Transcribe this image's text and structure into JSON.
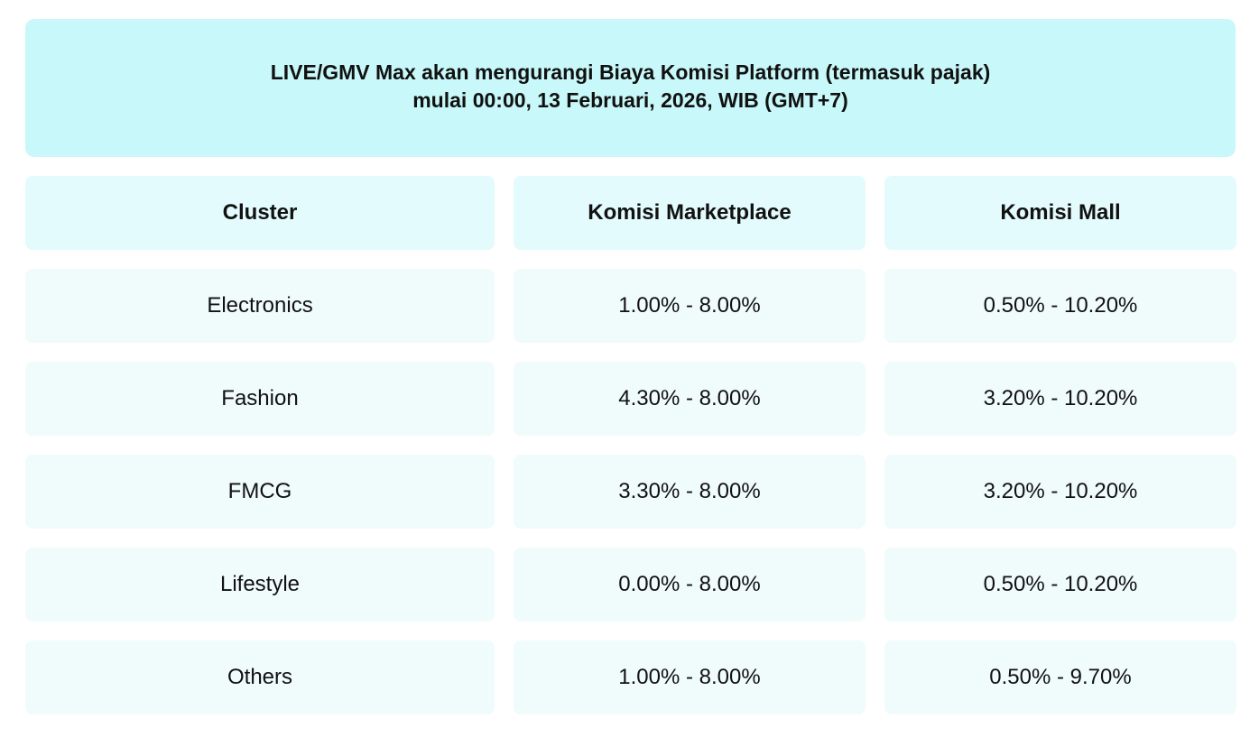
{
  "banner": {
    "line1": "LIVE/GMV Max akan mengurangi Biaya Komisi Platform (termasuk pajak)",
    "line2": "mulai 00:00, 13 Februari, 2026, WIB (GMT+7)"
  },
  "table": {
    "headers": [
      "Cluster",
      "Komisi Marketplace",
      "Komisi Mall"
    ],
    "rows": [
      [
        "Electronics",
        "1.00% - 8.00%",
        "0.50% - 10.20%"
      ],
      [
        "Fashion",
        "4.30% - 8.00%",
        "3.20% - 10.20%"
      ],
      [
        "FMCG",
        "3.30% - 8.00%",
        "3.20% - 10.20%"
      ],
      [
        "Lifestyle",
        "0.00% - 8.00%",
        "0.50% - 10.20%"
      ],
      [
        "Others",
        "1.00% - 8.00%",
        "0.50% - 9.70%"
      ]
    ]
  }
}
